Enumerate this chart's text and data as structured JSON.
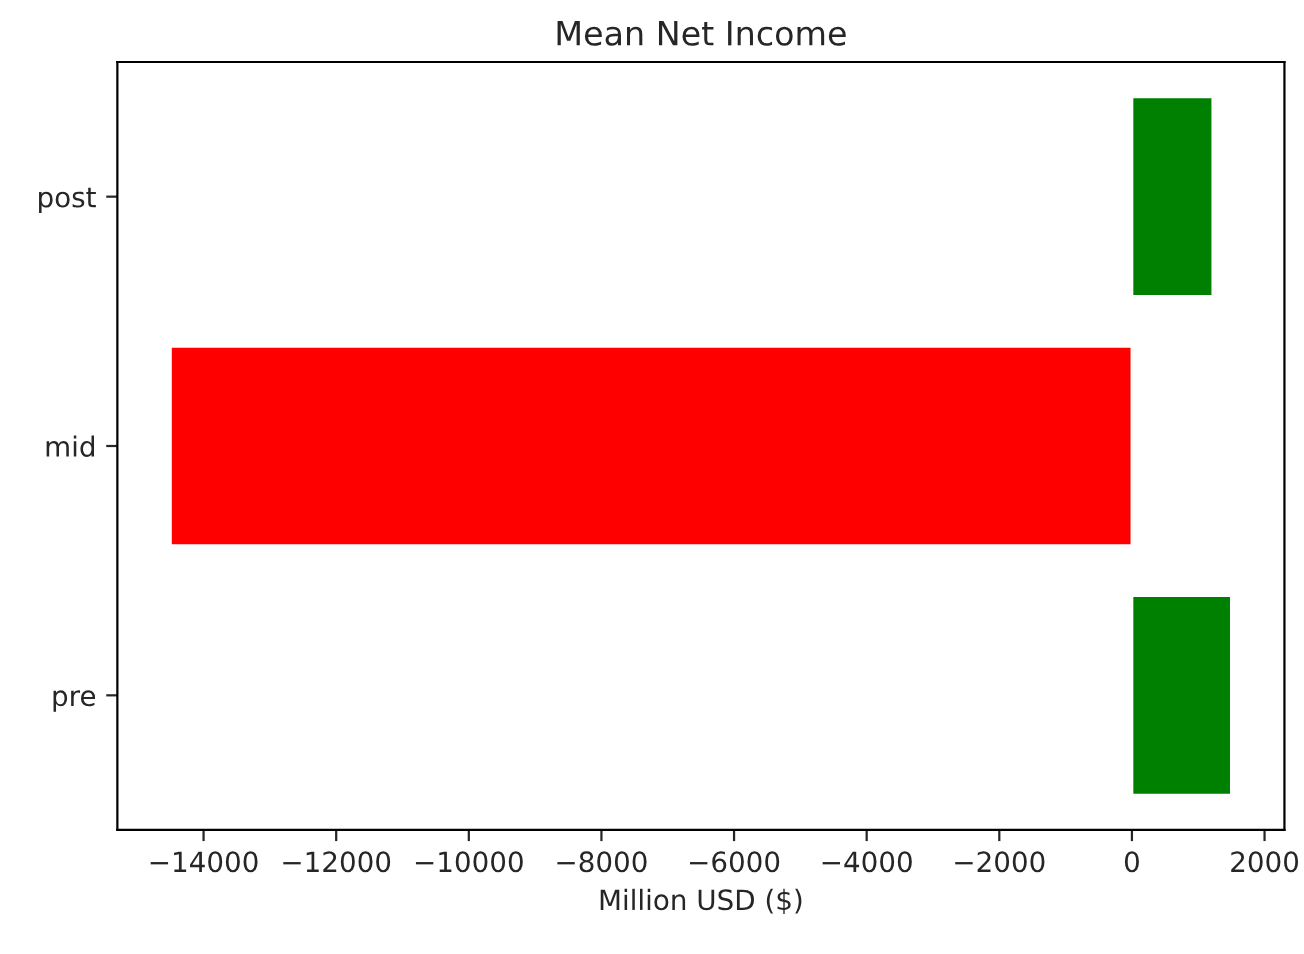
{
  "chart_data": {
    "type": "bar",
    "orientation": "horizontal",
    "title": "Mean Net Income",
    "xlabel": "Million USD ($)",
    "categories": [
      "post",
      "mid",
      "pre"
    ],
    "values": [
      1220,
      -14500,
      1500
    ],
    "colors": [
      "#008000",
      "#ff0000",
      "#008000"
    ],
    "xlim": [
      -15300,
      2300
    ],
    "xticks": [
      {
        "value": -14000,
        "label": "−14000"
      },
      {
        "value": -12000,
        "label": "−12000"
      },
      {
        "value": -10000,
        "label": "−10000"
      },
      {
        "value": -8000,
        "label": "−8000"
      },
      {
        "value": -6000,
        "label": "−6000"
      },
      {
        "value": -4000,
        "label": "−4000"
      },
      {
        "value": -2000,
        "label": "−2000"
      },
      0,
      2000
    ],
    "grid": false,
    "legend": false
  }
}
